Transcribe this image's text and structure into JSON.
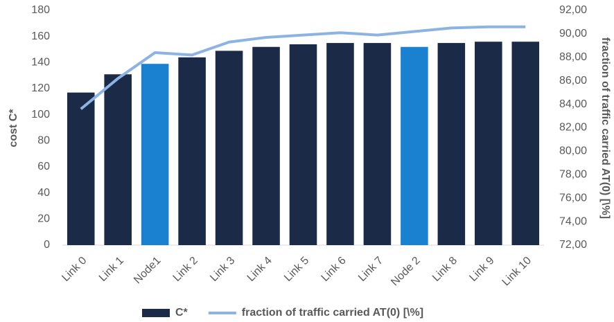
{
  "chart_data": {
    "type": "bar_line",
    "categories": [
      "Link 0",
      "Link 1",
      "Node1",
      "Link 2",
      "Link 3",
      "Link 4",
      "Link 5",
      "Link 6",
      "Link 7",
      "Node 2",
      "Link 8",
      "Link 9",
      "Link 10"
    ],
    "series": [
      {
        "name": "C*",
        "type": "bar",
        "color": "#1b2b47",
        "colors": [
          "#1b2b47",
          "#1b2b47",
          "#1a80d0",
          "#1b2b47",
          "#1b2b47",
          "#1b2b47",
          "#1b2b47",
          "#1b2b47",
          "#1b2b47",
          "#1a80d0",
          "#1b2b47",
          "#1b2b47",
          "#1b2b47"
        ],
        "values": [
          117,
          131,
          139,
          144,
          149,
          152,
          154,
          155,
          155,
          152,
          155,
          156,
          156
        ]
      },
      {
        "name": "fraction of traffic carried AT(0) [\\%]",
        "type": "line",
        "axis": "y2",
        "color": "#8db3e2",
        "values": [
          83.6,
          86.2,
          88.4,
          88.2,
          89.3,
          89.7,
          89.9,
          90.1,
          89.9,
          90.2,
          90.5,
          90.6,
          90.6
        ]
      }
    ],
    "ylabel": "cost C*",
    "y2label": "fraction of traffic carried AT(0) [\\%]",
    "ylim": [
      0,
      180
    ],
    "yticks": [
      0,
      20,
      40,
      60,
      80,
      100,
      120,
      140,
      160,
      180
    ],
    "y2lim": [
      72,
      92
    ],
    "y2ticks": [
      {
        "value": 72,
        "label": "72,00"
      },
      {
        "value": 74,
        "label": "74,00"
      },
      {
        "value": 76,
        "label": "76,00"
      },
      {
        "value": 78,
        "label": "78,00"
      },
      {
        "value": 80,
        "label": "80,00"
      },
      {
        "value": 82,
        "label": "82,00"
      },
      {
        "value": 84,
        "label": "84,00"
      },
      {
        "value": 86,
        "label": "86,00"
      },
      {
        "value": 88,
        "label": "88,00"
      },
      {
        "value": 90,
        "label": "90,00"
      },
      {
        "value": 92,
        "label": "92,00"
      }
    ],
    "grid": false,
    "legend": "bottom"
  }
}
